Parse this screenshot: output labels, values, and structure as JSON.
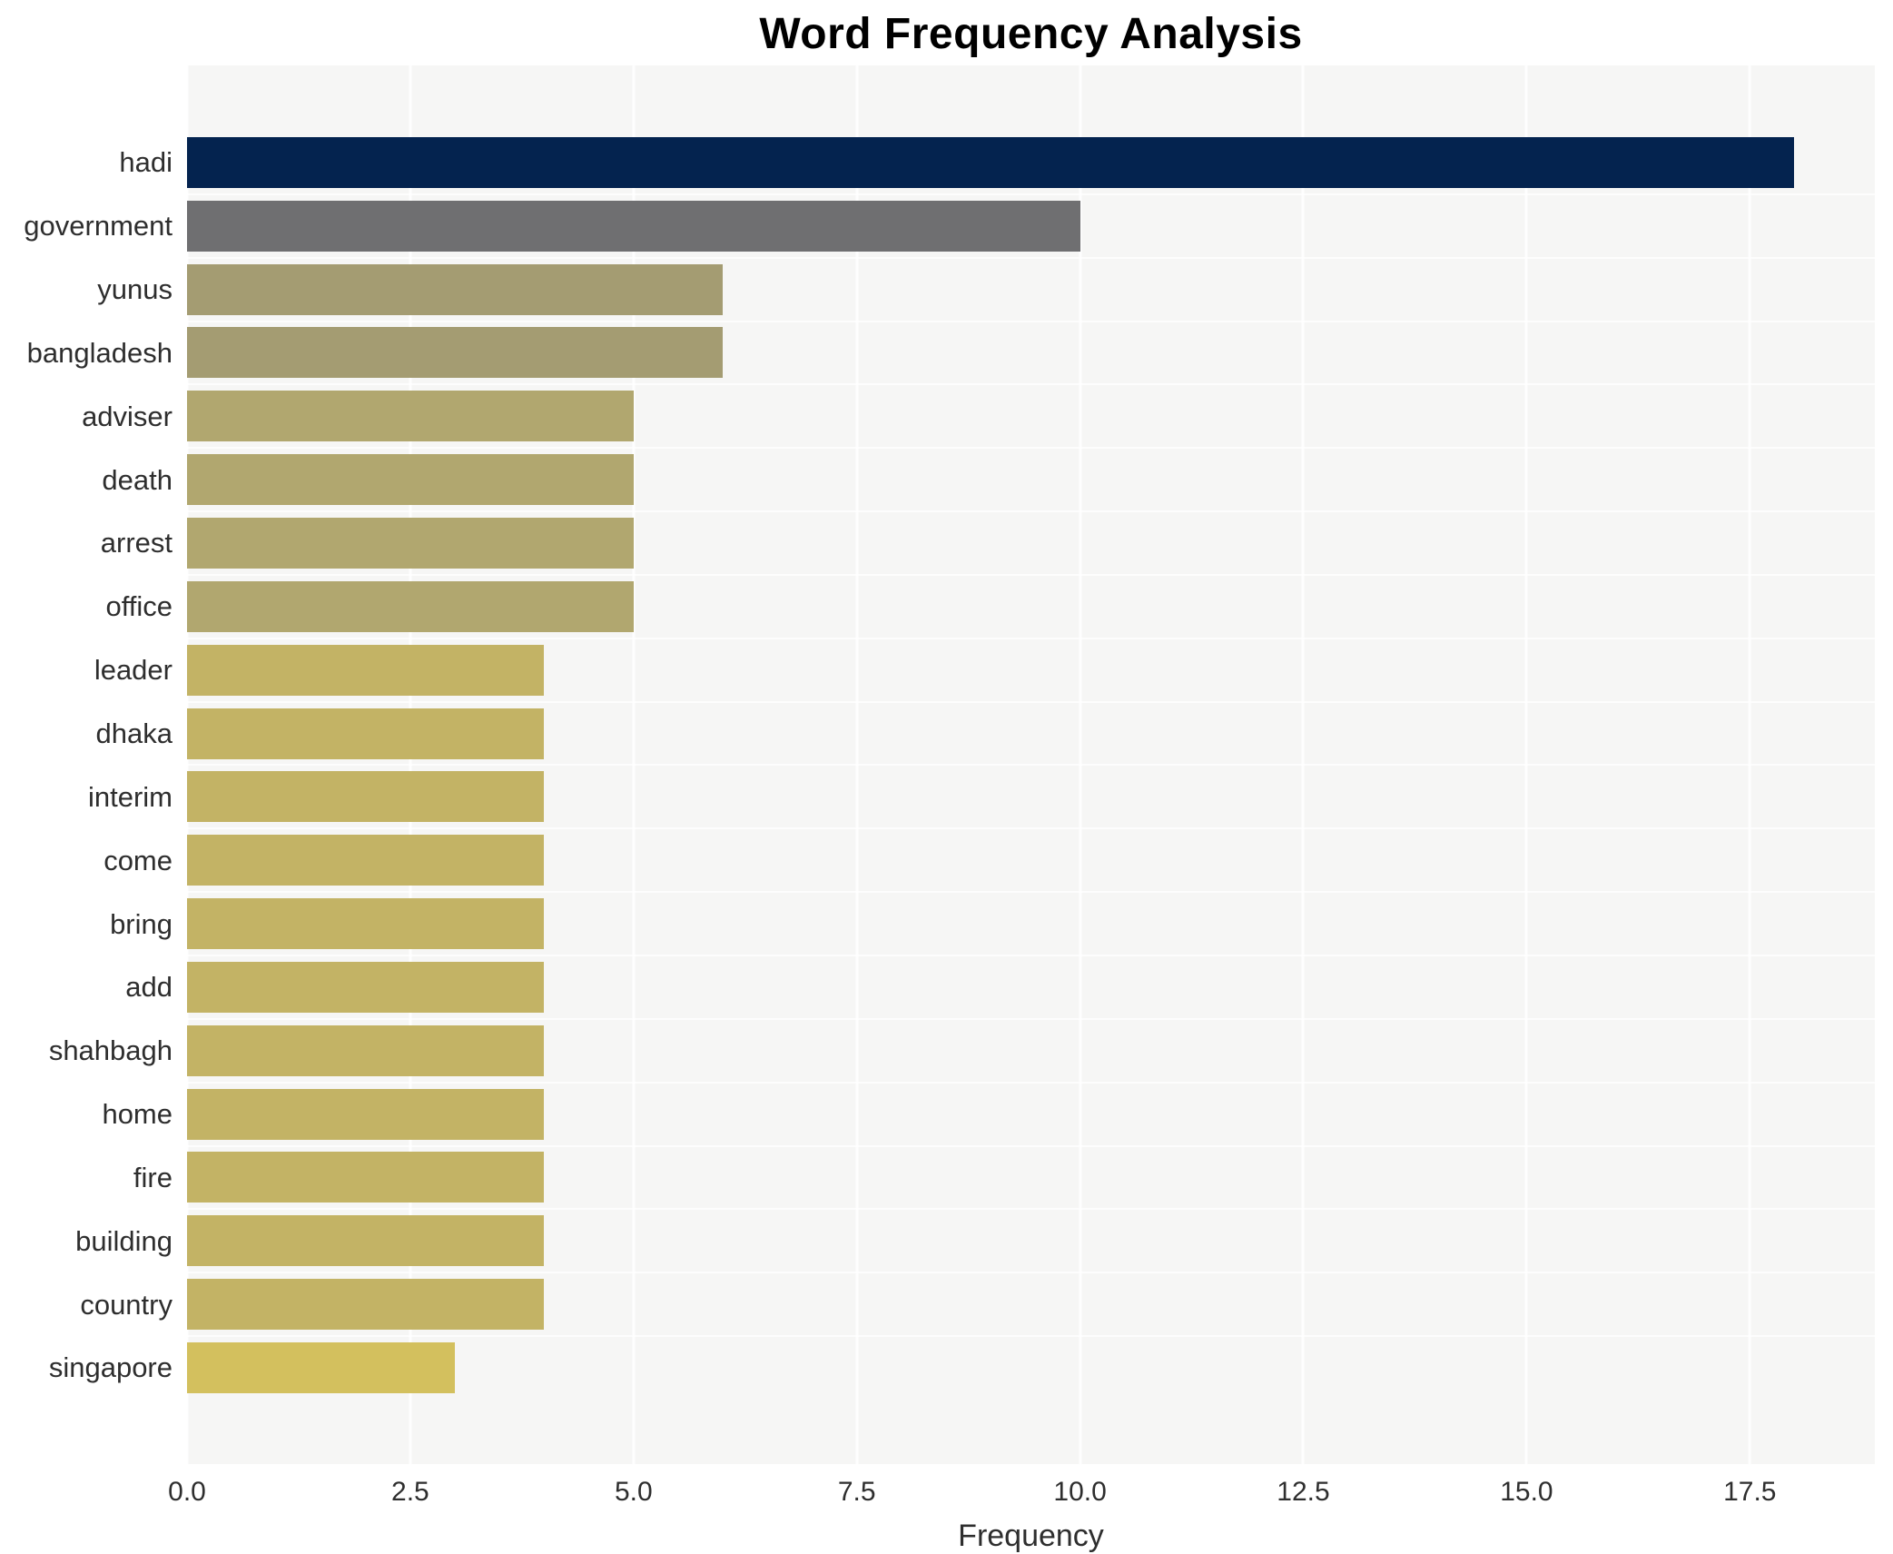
{
  "chart_data": {
    "type": "bar",
    "orientation": "horizontal",
    "title": "Word Frequency Analysis",
    "xlabel": "Frequency",
    "ylabel": "",
    "xlim": [
      0,
      18.9
    ],
    "grid": true,
    "legend": "none",
    "x_ticks": [
      0.0,
      2.5,
      5.0,
      7.5,
      10.0,
      12.5,
      15.0,
      17.5
    ],
    "x_tick_labels": [
      "0.0",
      "2.5",
      "5.0",
      "7.5",
      "10.0",
      "12.5",
      "15.0",
      "17.5"
    ],
    "categories": [
      "hadi",
      "government",
      "yunus",
      "bangladesh",
      "adviser",
      "death",
      "arrest",
      "office",
      "leader",
      "dhaka",
      "interim",
      "come",
      "bring",
      "add",
      "shahbagh",
      "home",
      "fire",
      "building",
      "country",
      "singapore"
    ],
    "values": [
      18,
      10,
      6,
      6,
      5,
      5,
      5,
      5,
      4,
      4,
      4,
      4,
      4,
      4,
      4,
      4,
      4,
      4,
      4,
      3
    ],
    "bar_colors": [
      "#04234f",
      "#6f6f71",
      "#a49c72",
      "#a49c72",
      "#b1a76f",
      "#b1a76f",
      "#b1a76f",
      "#b1a76f",
      "#c3b365",
      "#c3b365",
      "#c3b365",
      "#c3b365",
      "#c3b365",
      "#c3b365",
      "#c3b365",
      "#c3b365",
      "#c3b365",
      "#c3b365",
      "#c3b365",
      "#d3c05e"
    ],
    "colors": {
      "page_background": "#ffffff",
      "plot_background": "#f6f6f5",
      "gridline": "#ffffff",
      "tick_text": "#2e2e2e",
      "title_text": "#000000"
    }
  }
}
